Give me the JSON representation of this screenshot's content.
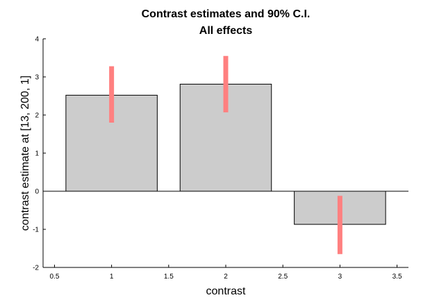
{
  "chart_data": {
    "type": "bar",
    "title": [
      "Contrast estimates and 90% C.I.",
      "All effects"
    ],
    "xlabel": "contrast",
    "ylabel": "contrast estimate at [13, 200, 1]",
    "x": [
      1,
      2,
      3
    ],
    "values": [
      2.52,
      2.81,
      -0.87
    ],
    "ci_lower": [
      1.8,
      2.07,
      -1.65
    ],
    "ci_upper": [
      3.28,
      3.55,
      -0.12
    ],
    "bar_width": 0.8,
    "xlim": [
      0.4,
      3.6
    ],
    "ylim": [
      -2,
      4
    ],
    "xticks": [
      0.5,
      1,
      1.5,
      2,
      2.5,
      3,
      3.5
    ],
    "xtick_labels": [
      "0.5",
      "1",
      "1.5",
      "2",
      "2.5",
      "3",
      "3.5"
    ],
    "yticks": [
      -2,
      -1,
      0,
      1,
      2,
      3,
      4
    ],
    "ytick_labels": [
      "-2",
      "-1",
      "0",
      "1",
      "2",
      "3",
      "4"
    ],
    "grid": false,
    "zero_line": true,
    "colors": {
      "bar_fill": "#cccccc",
      "bar_edge": "#000000",
      "error_bar": "#ff8080",
      "axis": "#000000"
    }
  }
}
